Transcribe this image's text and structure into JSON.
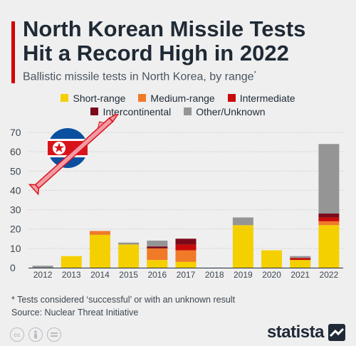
{
  "header": {
    "title": "North Korean Missile Tests Hit a Record High in 2022",
    "subtitle": "Ballistic missile tests in North Korea, by range",
    "subtitle_mark": "*"
  },
  "footer": {
    "footnote": "* Tests considered ‘successful’ or with an unknown result",
    "source": "Source: Nuclear Threat Initiative",
    "brand": "statista"
  },
  "icons": [
    "north-korea-flag-icon",
    "missile-icon",
    "creative-commons-icon",
    "attribution-icon",
    "no-derivatives-icon",
    "statista-logo-icon"
  ],
  "colors": {
    "accent": "#d10000",
    "background": "#efefef",
    "text": "#1f2a36"
  },
  "chart_data": {
    "type": "bar",
    "stacked": true,
    "categories": [
      "2012",
      "2013",
      "2014",
      "2015",
      "2016",
      "2017",
      "2018",
      "2019",
      "2020",
      "2021",
      "2022"
    ],
    "series": [
      {
        "name": "Short-range",
        "color": "#f5d000",
        "values": [
          0,
          6,
          17,
          12,
          4,
          3,
          0,
          22,
          9,
          4,
          22
        ]
      },
      {
        "name": "Medium-range",
        "color": "#f07a28",
        "values": [
          0,
          0,
          2,
          0,
          6,
          6,
          0,
          0,
          0,
          0,
          2
        ]
      },
      {
        "name": "Intermediate",
        "color": "#c80a0a",
        "values": [
          0,
          0,
          0,
          0,
          0,
          3,
          0,
          0,
          0,
          1,
          2
        ]
      },
      {
        "name": "Intercontinental",
        "color": "#7a0a1a",
        "values": [
          0,
          0,
          0,
          0,
          1,
          3,
          0,
          0,
          0,
          0,
          2
        ]
      },
      {
        "name": "Other/Unknown",
        "color": "#959595",
        "values": [
          1,
          0,
          0,
          1,
          3,
          0,
          0,
          4,
          0,
          1,
          36
        ]
      }
    ],
    "yticks": [
      0,
      10,
      20,
      30,
      40,
      50,
      60,
      70
    ],
    "ylim": [
      0,
      70
    ],
    "grid": true,
    "legend": "top"
  }
}
